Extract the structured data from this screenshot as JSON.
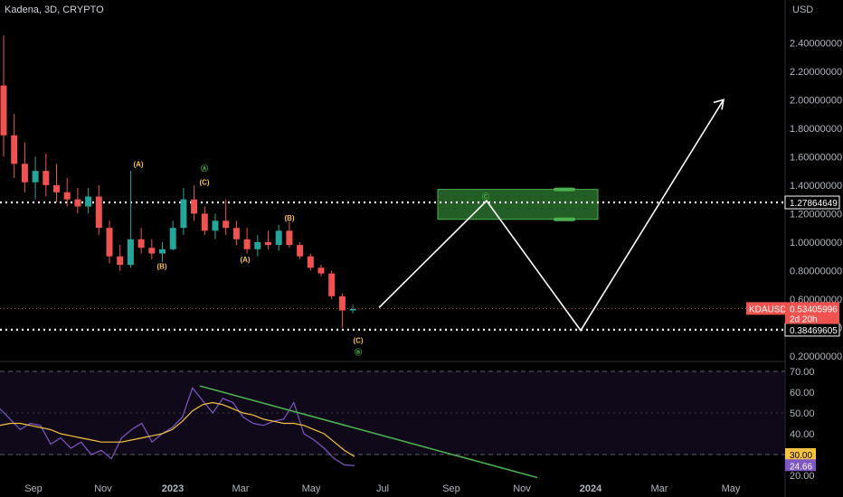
{
  "header": {
    "title": "Kadena, 3D, CRYPTO",
    "currency": "USD"
  },
  "colors": {
    "up": "#26a69a",
    "down": "#ef5350",
    "rsi": "#7e57c2",
    "ma": "#f5c242",
    "trend": "#4caf50",
    "box": "#2e7d32"
  },
  "chart_data": [
    {
      "type": "candlestick",
      "title": "Kadena, 3D, CRYPTO",
      "y_axis_unit": "USD",
      "ylim": [
        0.2,
        2.5
      ],
      "price_ticks": [
        "2.40000000",
        "2.20000000",
        "2.00000000",
        "1.80000000",
        "1.60000000",
        "1.40000000",
        "1.20000000",
        "1.00000000",
        "0.80000000",
        "0.60000000",
        "0.40000000",
        "0.20000000"
      ],
      "x_ticks": [
        "Sep",
        "Nov",
        "2023",
        "Mar",
        "May",
        "Jul",
        "Sep",
        "Nov",
        "2024",
        "Mar",
        "May"
      ],
      "price_tags": [
        {
          "label": "",
          "value": "1.27864649"
        },
        {
          "label": "KDAUSD",
          "value": "0.53405996",
          "sub": "2d 20h"
        },
        {
          "label": "",
          "value": "0.38469605"
        }
      ],
      "levels": [
        1.27864649,
        0.38469605
      ],
      "wave_labels": [
        {
          "text": "(A)",
          "date": "Dec 2022",
          "price": 1.55
        },
        {
          "text": "(B)",
          "date": "Dec 2022",
          "price": 0.83
        },
        {
          "text": "Ⓐ",
          "date": "Feb 2023",
          "price": 1.52
        },
        {
          "text": "(C)",
          "date": "Feb 2023",
          "price": 1.42
        },
        {
          "text": "(A)",
          "date": "Apr 2023",
          "price": 0.88
        },
        {
          "text": "(B)",
          "date": "May 2023",
          "price": 1.17
        },
        {
          "text": "(C)",
          "date": "Jun 2023",
          "price": 0.31
        },
        {
          "text": "Ⓑ",
          "date": "Jun 2023",
          "price": 0.23
        },
        {
          "text": "Ⓒ",
          "date": "Oct 2023",
          "price": 1.32
        }
      ],
      "projection": [
        {
          "date": "Jul 2023",
          "price": 0.54
        },
        {
          "date": "Oct 2023",
          "price": 1.29
        },
        {
          "date": "Dec 2023",
          "price": 0.38
        },
        {
          "date": "May 2024",
          "price": 2.0
        }
      ],
      "target_zone": {
        "from": "Sep 2023",
        "to": "Dec 2023",
        "low": 1.16,
        "high": 1.37
      },
      "candles_approx": [
        [
          2.1,
          2.45,
          1.6,
          1.75
        ],
        [
          1.75,
          1.9,
          1.45,
          1.55
        ],
        [
          1.55,
          1.7,
          1.35,
          1.42
        ],
        [
          1.42,
          1.6,
          1.3,
          1.5
        ],
        [
          1.5,
          1.62,
          1.32,
          1.4
        ],
        [
          1.4,
          1.55,
          1.28,
          1.35
        ],
        [
          1.35,
          1.45,
          1.25,
          1.3
        ],
        [
          1.3,
          1.38,
          1.2,
          1.25
        ],
        [
          1.25,
          1.38,
          1.2,
          1.32
        ],
        [
          1.32,
          1.4,
          1.05,
          1.1
        ],
        [
          1.1,
          1.15,
          0.85,
          0.9
        ],
        [
          0.9,
          0.98,
          0.8,
          0.84
        ],
        [
          0.84,
          1.5,
          0.82,
          1.02
        ],
        [
          1.02,
          1.1,
          0.92,
          0.96
        ],
        [
          0.96,
          1.02,
          0.88,
          0.92
        ],
        [
          0.92,
          1.0,
          0.86,
          0.95
        ],
        [
          0.95,
          1.15,
          0.94,
          1.1
        ],
        [
          1.1,
          1.38,
          1.05,
          1.3
        ],
        [
          1.3,
          1.4,
          1.15,
          1.2
        ],
        [
          1.2,
          1.25,
          1.05,
          1.08
        ],
        [
          1.08,
          1.2,
          1.02,
          1.15
        ],
        [
          1.15,
          1.3,
          1.05,
          1.1
        ],
        [
          1.1,
          1.15,
          0.98,
          1.02
        ],
        [
          1.02,
          1.1,
          0.92,
          0.95
        ],
        [
          0.95,
          1.05,
          0.9,
          1.0
        ],
        [
          1.0,
          1.08,
          0.95,
          0.98
        ],
        [
          0.98,
          1.12,
          0.94,
          1.08
        ],
        [
          1.08,
          1.15,
          0.96,
          0.98
        ],
        [
          0.98,
          1.0,
          0.88,
          0.9
        ],
        [
          0.9,
          0.92,
          0.8,
          0.82
        ],
        [
          0.82,
          0.84,
          0.76,
          0.78
        ],
        [
          0.78,
          0.8,
          0.6,
          0.62
        ],
        [
          0.62,
          0.64,
          0.4,
          0.52
        ],
        [
          0.52,
          0.56,
          0.5,
          0.53
        ]
      ]
    },
    {
      "type": "line",
      "title": "RSI",
      "ylim": [
        20,
        70
      ],
      "y_ticks": [
        "70.00",
        "60.00",
        "50.00",
        "40.00",
        "30.00",
        "20.00"
      ],
      "levels": [
        70,
        30
      ],
      "value_tags": [
        "30.00",
        "24.66"
      ],
      "series": [
        {
          "values": [
            52,
            47,
            42,
            45,
            44,
            35,
            38,
            33,
            36,
            30,
            32,
            28,
            38,
            42,
            45,
            36,
            40,
            43,
            48,
            62,
            56,
            50,
            57,
            55,
            48,
            45,
            44,
            46,
            47,
            55,
            40,
            37,
            33,
            28,
            25,
            24.66
          ]
        },
        {
          "values": [
            44,
            45,
            45,
            44,
            43,
            42,
            40,
            39,
            38,
            37,
            36,
            36,
            36,
            37,
            38,
            39,
            40,
            42,
            46,
            51,
            54,
            55,
            54,
            52,
            50,
            49,
            47,
            46,
            45,
            45,
            44,
            42,
            40,
            36,
            32,
            29
          ]
        }
      ],
      "trendline": [
        {
          "date": "Jan 2023",
          "value": 63
        },
        {
          "date": "Oct 2023",
          "value": 25
        }
      ]
    }
  ]
}
